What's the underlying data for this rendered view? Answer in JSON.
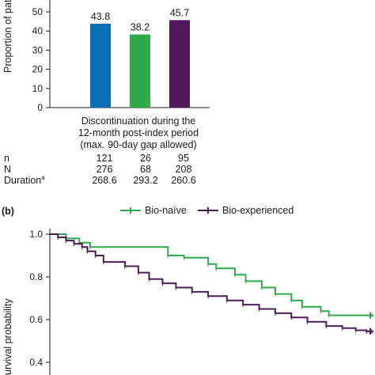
{
  "chart_data": [
    {
      "type": "bar",
      "ylabel": "Proportion of pat",
      "ylim": [
        0,
        50
      ],
      "yticks": [
        0,
        10,
        20,
        30,
        40,
        50
      ],
      "category_label": [
        "Discontinuation during the",
        "12-month post-index period",
        "(max. 90-day gap allowed)"
      ],
      "values": [
        43.8,
        38.2,
        45.7
      ],
      "value_labels": [
        "43.8",
        "38.2",
        "45.7"
      ],
      "colors": [
        "#0a6fb5",
        "#2eaa4a",
        "#4f1a5a"
      ],
      "table": {
        "row_labels": [
          "n",
          "N",
          "Duration"
        ],
        "duration_superscript": "a",
        "rows": [
          [
            "121",
            "26",
            "95"
          ],
          [
            "276",
            "68",
            "208"
          ],
          [
            "268.6",
            "293.2",
            "260.6"
          ]
        ]
      }
    },
    {
      "type": "line",
      "panel_label": "(b)",
      "ylabel": "urvival probability",
      "ylim": [
        0.4,
        1.0
      ],
      "yticks": [
        "1.0",
        "0.8",
        "0.6",
        "0.4"
      ],
      "xlim": [
        0,
        12
      ],
      "legend_position": "top-right",
      "series": [
        {
          "name": "Bio-naïve",
          "color": "#2eaa4a",
          "points": [
            [
              0,
              1.0
            ],
            [
              0.6,
              0.98
            ],
            [
              1.1,
              0.96
            ],
            [
              1.5,
              0.94
            ],
            [
              4.4,
              0.9
            ],
            [
              5.0,
              0.89
            ],
            [
              5.9,
              0.86
            ],
            [
              6.2,
              0.84
            ],
            [
              6.9,
              0.81
            ],
            [
              7.3,
              0.78
            ],
            [
              7.9,
              0.75
            ],
            [
              8.4,
              0.72
            ],
            [
              9.0,
              0.69
            ],
            [
              9.4,
              0.66
            ],
            [
              10.1,
              0.64
            ],
            [
              10.4,
              0.62
            ],
            [
              12,
              0.62
            ]
          ]
        },
        {
          "name": "Bio-experienced",
          "color": "#4f1a5a",
          "points": [
            [
              0,
              1.0
            ],
            [
              0.3,
              0.985
            ],
            [
              0.6,
              0.97
            ],
            [
              0.9,
              0.955
            ],
            [
              1.2,
              0.94
            ],
            [
              1.4,
              0.92
            ],
            [
              1.7,
              0.9
            ],
            [
              2.0,
              0.87
            ],
            [
              2.8,
              0.85
            ],
            [
              3.3,
              0.82
            ],
            [
              3.7,
              0.79
            ],
            [
              4.2,
              0.77
            ],
            [
              4.7,
              0.75
            ],
            [
              5.3,
              0.73
            ],
            [
              5.9,
              0.71
            ],
            [
              6.6,
              0.69
            ],
            [
              7.2,
              0.67
            ],
            [
              7.8,
              0.65
            ],
            [
              8.4,
              0.63
            ],
            [
              9.0,
              0.61
            ],
            [
              9.6,
              0.59
            ],
            [
              10.3,
              0.57
            ],
            [
              10.9,
              0.56
            ],
            [
              11.4,
              0.55
            ],
            [
              11.8,
              0.545
            ],
            [
              12,
              0.545
            ]
          ]
        }
      ]
    }
  ]
}
